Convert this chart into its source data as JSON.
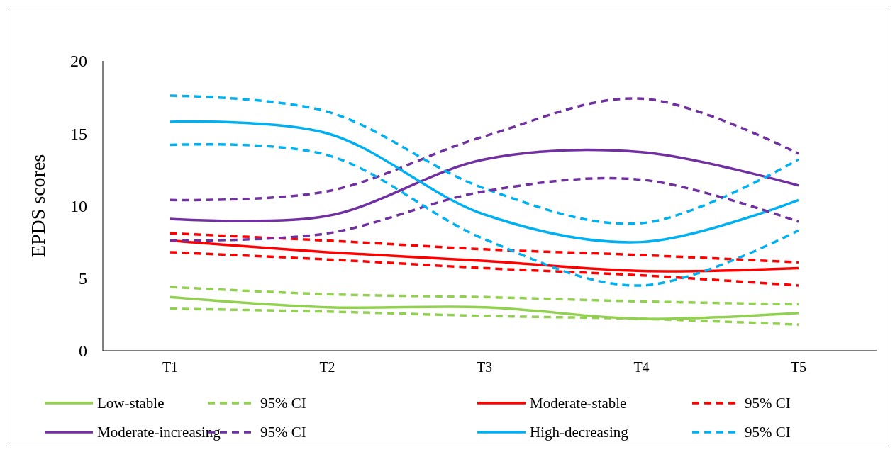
{
  "chart_data": {
    "type": "line",
    "ylabel": "EPDS scores",
    "categories": [
      "T1",
      "T2",
      "T3",
      "T4",
      "T5"
    ],
    "ylim": [
      0,
      20
    ],
    "yticks": [
      0,
      5,
      10,
      15,
      20
    ],
    "legend": "bottom",
    "series": [
      {
        "name": "Low-stable",
        "color": "#92d050",
        "line_style": "solid",
        "values": [
          3.7,
          3.0,
          3.0,
          2.2,
          2.6
        ]
      },
      {
        "name": "95% CI",
        "color": "#92d050",
        "line_style": "dashed",
        "values": [
          4.4,
          3.9,
          3.7,
          3.4,
          3.2
        ]
      },
      {
        "name": "Moderate-stable",
        "color": "#ff0000",
        "line_style": "solid",
        "values": [
          7.6,
          6.8,
          6.2,
          5.5,
          5.7
        ]
      },
      {
        "name": "95% CI",
        "color": "#ff0000",
        "line_style": "dashed",
        "values": [
          8.1,
          7.6,
          7.0,
          6.6,
          6.1
        ]
      },
      {
        "name": "Moderate-increasing",
        "color": "#7030a0",
        "line_style": "solid",
        "values": [
          9.1,
          9.3,
          13.2,
          13.7,
          11.4
        ]
      },
      {
        "name": "95% CI",
        "color": "#7030a0",
        "line_style": "dashed",
        "values": [
          10.4,
          11.0,
          14.8,
          17.4,
          13.6
        ]
      },
      {
        "name": "High-decreasing",
        "color": "#00b0f0",
        "line_style": "solid",
        "values": [
          15.8,
          15.0,
          9.4,
          7.5,
          10.4
        ]
      },
      {
        "name": "95% CI",
        "color": "#00b0f0",
        "line_style": "dashed",
        "values": [
          17.6,
          16.5,
          11.2,
          8.8,
          13.2
        ]
      },
      {
        "color": "#92d050",
        "line_style": "dashed",
        "values": [
          2.9,
          2.7,
          2.4,
          2.2,
          1.8
        ]
      },
      {
        "color": "#ff0000",
        "line_style": "dashed",
        "values": [
          6.8,
          6.3,
          5.7,
          5.2,
          4.5
        ]
      },
      {
        "color": "#7030a0",
        "line_style": "dashed",
        "values": [
          7.6,
          8.1,
          11.0,
          11.8,
          8.9
        ]
      },
      {
        "color": "#00b0f0",
        "line_style": "dashed",
        "values": [
          14.2,
          13.5,
          7.7,
          4.5,
          8.3
        ]
      }
    ]
  }
}
